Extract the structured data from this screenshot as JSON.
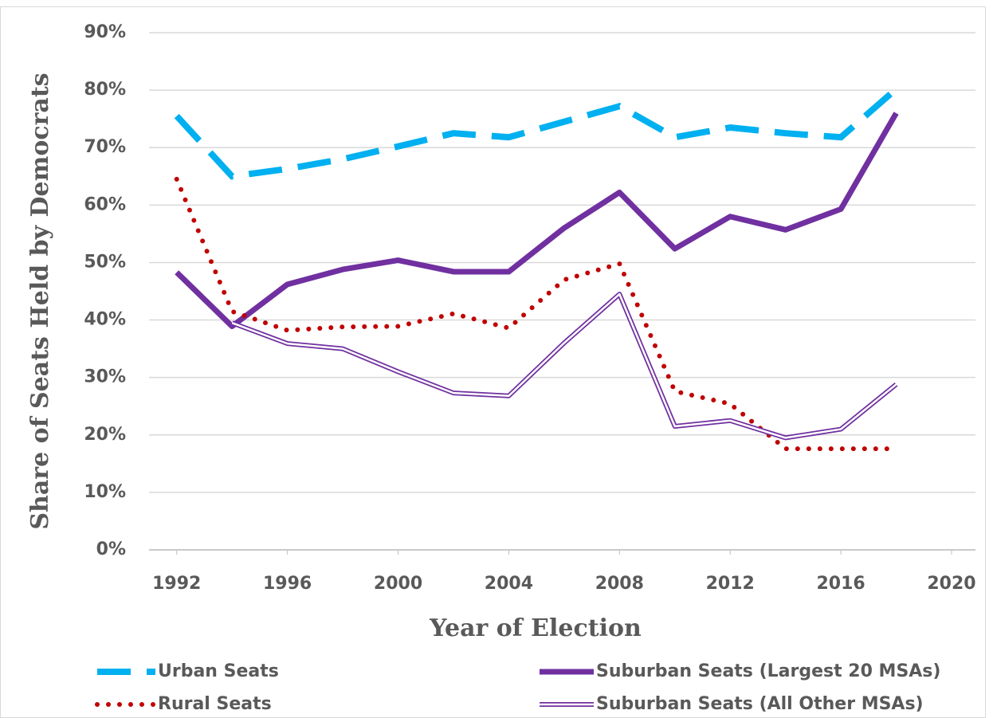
{
  "chart_data": {
    "type": "line",
    "y_label": "Share of Seats Held by Democrats",
    "x_label": "Year of Election",
    "x": [
      1992,
      1994,
      1996,
      1998,
      2000,
      2002,
      2004,
      2006,
      2008,
      2010,
      2012,
      2014,
      2016,
      2018
    ],
    "series": [
      {
        "name": "Urban Seats",
        "color": "#00b0f0",
        "style": "dashed",
        "values": [
          75.5,
          65,
          66.3,
          68,
          70.2,
          72.5,
          71.8,
          74.5,
          77.2,
          71.8,
          73.5,
          72.5,
          71.8,
          80.2
        ]
      },
      {
        "name": "Suburban Seats (Largest 20 MSAs)",
        "color": "#7030a0",
        "style": "solid",
        "values": [
          48.3,
          38.9,
          46.2,
          48.8,
          50.4,
          48.4,
          48.4,
          56,
          62.2,
          52.4,
          58,
          55.7,
          59.3,
          76
        ]
      },
      {
        "name": "Rural Seats",
        "color": "#c00000",
        "style": "dotted",
        "values": [
          64.5,
          41.5,
          38.2,
          38.8,
          38.9,
          41.1,
          38.6,
          47,
          49.8,
          27.6,
          25.4,
          17.6,
          17.6,
          17.6
        ]
      },
      {
        "name": "Suburban Seats (All Other MSAs)",
        "color": "#7030a0",
        "style": "double",
        "values": [
          null,
          39.5,
          35.9,
          35,
          31,
          27.3,
          26.8,
          36,
          44.5,
          21.5,
          22.5,
          19.5,
          21,
          28.8
        ]
      }
    ],
    "xlim": [
      1991,
      2020
    ],
    "xticks": [
      1992,
      1996,
      2000,
      2004,
      2008,
      2012,
      2016,
      2020
    ],
    "ylim": [
      0,
      90
    ],
    "yticks": [
      {
        "value": 0,
        "label": "0%"
      },
      {
        "value": 10,
        "label": "10%"
      },
      {
        "value": 20,
        "label": "20%"
      },
      {
        "value": 30,
        "label": "30%"
      },
      {
        "value": 40,
        "label": "40%"
      },
      {
        "value": 50,
        "label": "50%"
      },
      {
        "value": 60,
        "label": "60%"
      },
      {
        "value": 70,
        "label": "70%"
      },
      {
        "value": 80,
        "label": "80%"
      },
      {
        "value": 90,
        "label": "90%"
      }
    ],
    "grid": true,
    "legend": "bottom"
  }
}
